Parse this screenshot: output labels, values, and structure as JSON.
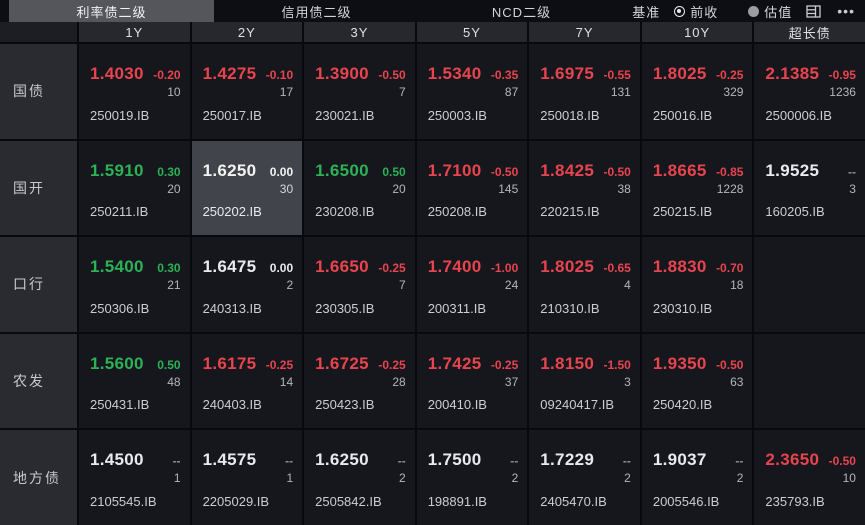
{
  "tabs": [
    {
      "label": "利率债二级",
      "active": true
    },
    {
      "label": "信用债二级",
      "active": false
    },
    {
      "label": "NCD二级",
      "active": false
    }
  ],
  "benchmark": {
    "label": "基准",
    "options": [
      {
        "label": "前收",
        "selected": true
      },
      {
        "label": "估值",
        "selected": false
      }
    ]
  },
  "icons": [
    "layout-panel-icon",
    "more-ellipsis-icon"
  ],
  "colors": {
    "up_red": "#e8444e",
    "down_green": "#2cb156",
    "neutral_white": "#e9eaec",
    "selected_cell_bg": "#41444b",
    "cell_bg": "#15171d",
    "header_bg": "#26282e"
  },
  "columns": [
    "1Y",
    "2Y",
    "3Y",
    "5Y",
    "7Y",
    "10Y",
    "超长债"
  ],
  "rows": [
    {
      "label": "国债",
      "cells": [
        {
          "rate": "1.4030",
          "color": "red",
          "change": "-0.20",
          "count": "10",
          "code": "250019.IB"
        },
        {
          "rate": "1.4275",
          "color": "red",
          "change": "-0.10",
          "count": "17",
          "code": "250017.IB"
        },
        {
          "rate": "1.3900",
          "color": "red",
          "change": "-0.50",
          "count": "7",
          "code": "230021.IB"
        },
        {
          "rate": "1.5340",
          "color": "red",
          "change": "-0.35",
          "count": "87",
          "code": "250003.IB"
        },
        {
          "rate": "1.6975",
          "color": "red",
          "change": "-0.55",
          "count": "131",
          "code": "250018.IB"
        },
        {
          "rate": "1.8025",
          "color": "red",
          "change": "-0.25",
          "count": "329",
          "code": "250016.IB"
        },
        {
          "rate": "2.1385",
          "color": "red",
          "change": "-0.95",
          "count": "1236",
          "code": "2500006.IB"
        }
      ]
    },
    {
      "label": "国开",
      "cells": [
        {
          "rate": "1.5910",
          "color": "green",
          "change": "0.30",
          "count": "20",
          "code": "250211.IB"
        },
        {
          "rate": "1.6250",
          "color": "white",
          "change": "0.00",
          "count": "30",
          "code": "250202.IB",
          "selected": true
        },
        {
          "rate": "1.6500",
          "color": "green",
          "change": "0.50",
          "count": "20",
          "code": "230208.IB"
        },
        {
          "rate": "1.7100",
          "color": "red",
          "change": "-0.50",
          "count": "145",
          "code": "250208.IB"
        },
        {
          "rate": "1.8425",
          "color": "red",
          "change": "-0.50",
          "count": "38",
          "code": "220215.IB"
        },
        {
          "rate": "1.8665",
          "color": "red",
          "change": "-0.85",
          "count": "1228",
          "code": "250215.IB"
        },
        {
          "rate": "1.9525",
          "color": "white",
          "change": "--",
          "count": "3",
          "code": "160205.IB"
        }
      ]
    },
    {
      "label": "口行",
      "cells": [
        {
          "rate": "1.5400",
          "color": "green",
          "change": "0.30",
          "count": "21",
          "code": "250306.IB"
        },
        {
          "rate": "1.6475",
          "color": "white",
          "change": "0.00",
          "count": "2",
          "code": "240313.IB"
        },
        {
          "rate": "1.6650",
          "color": "red",
          "change": "-0.25",
          "count": "7",
          "code": "230305.IB"
        },
        {
          "rate": "1.7400",
          "color": "red",
          "change": "-1.00",
          "count": "24",
          "code": "200311.IB"
        },
        {
          "rate": "1.8025",
          "color": "red",
          "change": "-0.65",
          "count": "4",
          "code": "210310.IB"
        },
        {
          "rate": "1.8830",
          "color": "red",
          "change": "-0.70",
          "count": "18",
          "code": "230310.IB"
        },
        {
          "empty": true
        }
      ]
    },
    {
      "label": "农发",
      "cells": [
        {
          "rate": "1.5600",
          "color": "green",
          "change": "0.50",
          "count": "48",
          "code": "250431.IB"
        },
        {
          "rate": "1.6175",
          "color": "red",
          "change": "-0.25",
          "count": "14",
          "code": "240403.IB"
        },
        {
          "rate": "1.6725",
          "color": "red",
          "change": "-0.25",
          "count": "28",
          "code": "250423.IB"
        },
        {
          "rate": "1.7425",
          "color": "red",
          "change": "-0.25",
          "count": "37",
          "code": "200410.IB"
        },
        {
          "rate": "1.8150",
          "color": "red",
          "change": "-1.50",
          "count": "3",
          "code": "09240417.IB"
        },
        {
          "rate": "1.9350",
          "color": "red",
          "change": "-0.50",
          "count": "63",
          "code": "250420.IB"
        },
        {
          "empty": true
        }
      ]
    },
    {
      "label": "地方债",
      "cells": [
        {
          "rate": "1.4500",
          "color": "white",
          "change": "--",
          "count": "1",
          "code": "2105545.IB"
        },
        {
          "rate": "1.4575",
          "color": "white",
          "change": "--",
          "count": "1",
          "code": "2205029.IB"
        },
        {
          "rate": "1.6250",
          "color": "white",
          "change": "--",
          "count": "2",
          "code": "2505842.IB"
        },
        {
          "rate": "1.7500",
          "color": "white",
          "change": "--",
          "count": "2",
          "code": "198891.IB"
        },
        {
          "rate": "1.7229",
          "color": "white",
          "change": "--",
          "count": "2",
          "code": "2405470.IB"
        },
        {
          "rate": "1.9037",
          "color": "white",
          "change": "--",
          "count": "2",
          "code": "2005546.IB"
        },
        {
          "rate": "2.3650",
          "color": "red",
          "change": "-0.50",
          "count": "10",
          "code": "235793.IB"
        }
      ]
    }
  ]
}
